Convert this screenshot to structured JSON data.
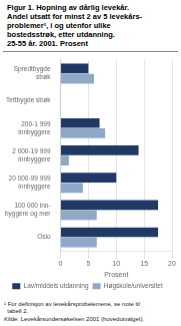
{
  "chart_data": {
    "type": "bar",
    "orientation": "horizontal",
    "title": "Figur 1. Hopning av dårlig levekår.\nAndel utsatt for minst 2 av 5 levekårs-\nproblemer¹, i og utenfor ulike\nbostedsstrøk, etter utdanning.\n25-55 år. 2001.  Prosent",
    "categories": [
      "Spredtbygde\nstrøk",
      "Tettbygde strøk",
      "200-1 999\ninnbyggere",
      "2 000-19 999\ninnbyggere",
      "20 000-99 999\ninnbyggere",
      "100 000 inn-\nbyggere og mer",
      "Oslo"
    ],
    "series": [
      {
        "name": "Lav/middels utdanning",
        "color": "#1f3864",
        "values": [
          5.0,
          0.0,
          7.0,
          14.0,
          10.0,
          17.5,
          17.5
        ]
      },
      {
        "name": "Høgskole/universitet",
        "color": "#8fa8c8",
        "values": [
          6.0,
          0.0,
          8.0,
          1.5,
          4.0,
          6.5,
          6.5
        ]
      }
    ],
    "xlabel": "Prosent",
    "xlim": [
      0,
      20
    ],
    "xticks": [
      0,
      5,
      10,
      15,
      20
    ],
    "grid": true,
    "legend": "bottom",
    "annotations": [
      "¹ For definisjon av levekårsprobelemene, se note til",
      "  tabell 2.",
      "Kilde: Levekårsundersøkelsen 2001 (hovedutvalget)."
    ]
  }
}
